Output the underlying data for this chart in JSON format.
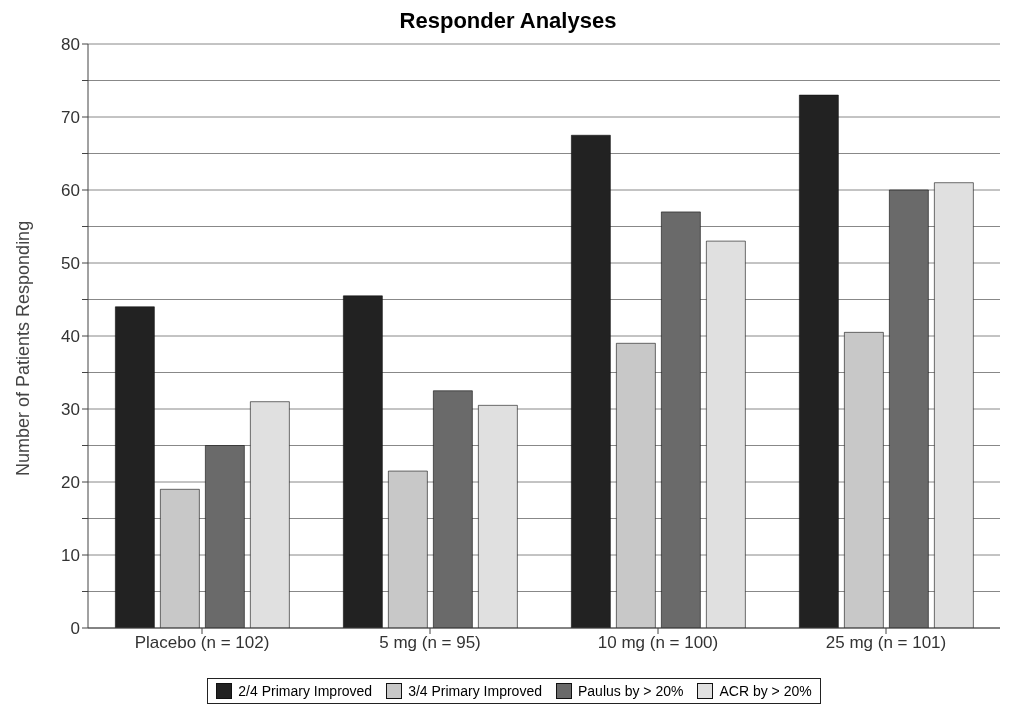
{
  "chart_data": {
    "type": "bar",
    "title": "Responder Analyses",
    "ylabel": "Number of Patients Responding",
    "categories": [
      "Placebo (n = 102)",
      "5 mg (n = 95)",
      "10 mg (n = 100)",
      "25 mg (n = 101)"
    ],
    "series": [
      {
        "name": "2/4 Primary Improved",
        "color": "#222222",
        "values": [
          44,
          45.5,
          67.5,
          73
        ]
      },
      {
        "name": "3/4 Primary Improved",
        "color": "#c8c8c8",
        "values": [
          19,
          21.5,
          39,
          40.5
        ]
      },
      {
        "name": "Paulus by > 20%",
        "color": "#6a6a6a",
        "values": [
          25,
          32.5,
          57,
          60
        ]
      },
      {
        "name": "ACR by > 20%",
        "color": "#e0e0e0",
        "values": [
          31,
          30.5,
          53,
          61
        ]
      }
    ],
    "ylim": [
      0,
      80
    ],
    "yticks": [
      0,
      {
        "value": 5,
        "label": null
      },
      10,
      {
        "value": 15,
        "label": null
      },
      20,
      {
        "value": 25,
        "label": null
      },
      30,
      {
        "value": 35,
        "label": null
      },
      40,
      {
        "value": 45,
        "label": null
      },
      50,
      {
        "value": 55,
        "label": null
      },
      60,
      {
        "value": 65,
        "label": null
      },
      70,
      {
        "value": 75,
        "label": null
      },
      80
    ],
    "grid": "y",
    "legend": "bottom"
  }
}
